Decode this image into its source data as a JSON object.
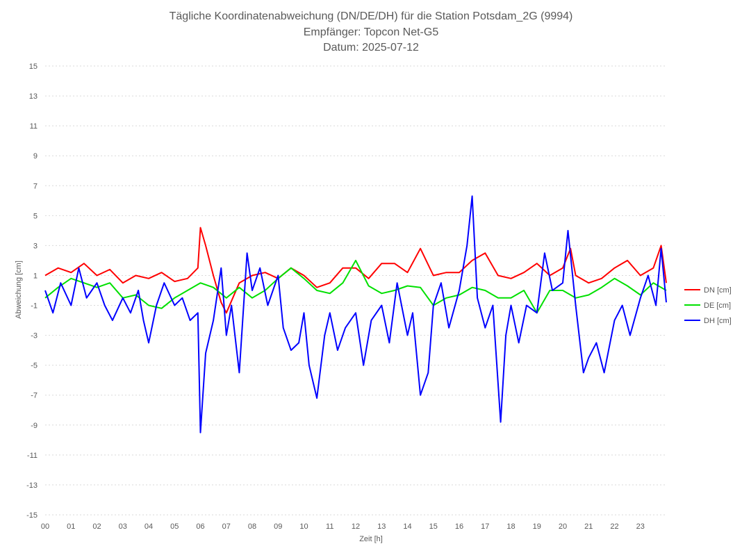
{
  "chart_data": {
    "type": "line",
    "title_lines": [
      "Tägliche Koordinatenabweichung (DN/DE/DH) für die Station Potsdam_2G (9994)",
      "Empfänger: Topcon Net-G5",
      "Datum: 2025-07-12"
    ],
    "xlabel": "Zeit [h]",
    "ylabel": "Abweichung [cm]",
    "x_ticks": [
      "00",
      "01",
      "02",
      "03",
      "04",
      "05",
      "06",
      "07",
      "08",
      "09",
      "10",
      "11",
      "12",
      "13",
      "14",
      "15",
      "16",
      "17",
      "18",
      "19",
      "20",
      "21",
      "22",
      "23"
    ],
    "y_ticks": [
      15,
      13,
      11,
      9,
      7,
      5,
      3,
      1,
      -1,
      -3,
      -5,
      -7,
      -9,
      -11,
      -13,
      -15
    ],
    "ylim": [
      -15,
      15
    ],
    "xlim": [
      0,
      24
    ],
    "grid": {
      "horizontal": true,
      "style": "dotted"
    },
    "legend_position": "right",
    "series": [
      {
        "name": "DN [cm]",
        "color": "#ff0000",
        "x": [
          0,
          0.5,
          1,
          1.5,
          2,
          2.5,
          3,
          3.5,
          4,
          4.5,
          5,
          5.5,
          5.9,
          6,
          6.2,
          6.5,
          6.8,
          7,
          7.5,
          8,
          8.5,
          9,
          9.5,
          10,
          10.5,
          11,
          11.5,
          12,
          12.5,
          13,
          13.5,
          14,
          14.5,
          15,
          15.5,
          16,
          16.5,
          17,
          17.5,
          18,
          18.5,
          19,
          19.5,
          20,
          20.3,
          20.5,
          21,
          21.5,
          22,
          22.5,
          23,
          23.5,
          23.8,
          24
        ],
        "values": [
          1.0,
          1.5,
          1.2,
          1.8,
          1.0,
          1.4,
          0.5,
          1.0,
          0.8,
          1.2,
          0.6,
          0.8,
          1.5,
          4.2,
          3.0,
          1.0,
          -0.8,
          -1.5,
          0.5,
          1.0,
          1.2,
          0.8,
          1.5,
          1.0,
          0.2,
          0.5,
          1.5,
          1.5,
          0.8,
          1.8,
          1.8,
          1.2,
          2.8,
          1.0,
          1.2,
          1.2,
          2.0,
          2.5,
          1.0,
          0.8,
          1.2,
          1.8,
          1.0,
          1.5,
          2.8,
          1.0,
          0.5,
          0.8,
          1.5,
          2.0,
          1.0,
          1.5,
          3.0,
          0.5
        ]
      },
      {
        "name": "DE [cm]",
        "color": "#00e000",
        "x": [
          0,
          0.5,
          1,
          1.5,
          2,
          2.5,
          3,
          3.5,
          4,
          4.5,
          5,
          5.5,
          6,
          6.5,
          7,
          7.5,
          8,
          8.5,
          9,
          9.5,
          10,
          10.5,
          11,
          11.5,
          12,
          12.5,
          13,
          13.5,
          14,
          14.5,
          15,
          15.5,
          16,
          16.5,
          17,
          17.5,
          18,
          18.5,
          19,
          19.5,
          20,
          20.5,
          21,
          21.5,
          22,
          22.5,
          23,
          23.5,
          24
        ],
        "values": [
          -0.5,
          0.2,
          0.8,
          0.5,
          0.2,
          0.5,
          -0.5,
          -0.3,
          -1.0,
          -1.2,
          -0.5,
          0.0,
          0.5,
          0.2,
          -0.5,
          0.2,
          -0.5,
          0.0,
          0.8,
          1.5,
          0.8,
          0.0,
          -0.2,
          0.5,
          2.0,
          0.3,
          -0.2,
          0.0,
          0.3,
          0.2,
          -1.0,
          -0.5,
          -0.3,
          0.2,
          0.0,
          -0.5,
          -0.5,
          0.0,
          -1.5,
          0.0,
          0.0,
          -0.5,
          -0.3,
          0.2,
          0.8,
          0.3,
          -0.3,
          0.5,
          0.0
        ]
      },
      {
        "name": "DH [cm]",
        "color": "#0000ff",
        "x": [
          0,
          0.3,
          0.6,
          1,
          1.3,
          1.6,
          2,
          2.3,
          2.6,
          3,
          3.3,
          3.6,
          3.8,
          4,
          4.3,
          4.6,
          5,
          5.3,
          5.6,
          5.9,
          6,
          6.2,
          6.5,
          6.8,
          7,
          7.2,
          7.5,
          7.8,
          8,
          8.3,
          8.6,
          9,
          9.2,
          9.5,
          9.8,
          10,
          10.2,
          10.5,
          10.8,
          11,
          11.3,
          11.6,
          12,
          12.3,
          12.6,
          13,
          13.3,
          13.6,
          14,
          14.2,
          14.5,
          14.8,
          15,
          15.3,
          15.6,
          16,
          16.3,
          16.5,
          16.7,
          17,
          17.3,
          17.6,
          17.8,
          18,
          18.3,
          18.6,
          19,
          19.3,
          19.6,
          20,
          20.2,
          20.5,
          20.8,
          21,
          21.3,
          21.6,
          22,
          22.3,
          22.6,
          23,
          23.3,
          23.6,
          23.8,
          24
        ],
        "values": [
          0.0,
          -1.5,
          0.5,
          -1.0,
          1.5,
          -0.5,
          0.5,
          -1.0,
          -2.0,
          -0.5,
          -1.5,
          0.0,
          -2.0,
          -3.5,
          -1.0,
          0.5,
          -1.0,
          -0.5,
          -2.0,
          -1.5,
          -9.5,
          -4.2,
          -2.0,
          1.5,
          -3.0,
          -1.0,
          -5.5,
          2.5,
          0.0,
          1.5,
          -1.0,
          1.0,
          -2.5,
          -4.0,
          -3.5,
          -1.5,
          -5.0,
          -7.2,
          -3.0,
          -1.5,
          -4.0,
          -2.5,
          -1.5,
          -5.0,
          -2.0,
          -1.0,
          -3.5,
          0.5,
          -3.0,
          -1.5,
          -7.0,
          -5.5,
          -1.0,
          0.5,
          -2.5,
          0.0,
          3.0,
          6.3,
          -0.5,
          -2.5,
          -1.0,
          -8.8,
          -3.0,
          -1.0,
          -3.5,
          -1.0,
          -1.5,
          2.5,
          0.0,
          0.5,
          4.0,
          -1.0,
          -5.5,
          -4.5,
          -3.5,
          -5.5,
          -2.0,
          -1.0,
          -3.0,
          -0.5,
          1.0,
          -1.0,
          2.8,
          -0.8
        ]
      }
    ]
  }
}
